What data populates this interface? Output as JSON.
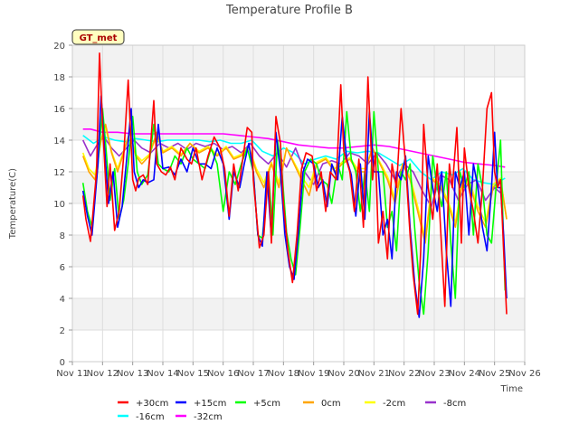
{
  "chart_data": {
    "type": "line",
    "title": "Temperature Profile B",
    "xlabel": "Time",
    "ylabel": "Temperature(C)",
    "badge": "GT_met",
    "ylim": [
      0,
      20
    ],
    "yticks": [
      0,
      2,
      4,
      6,
      8,
      10,
      12,
      14,
      16,
      18,
      20
    ],
    "xlim": [
      0,
      15
    ],
    "xticks": [
      {
        "x": 0,
        "label": "Nov 11"
      },
      {
        "x": 1,
        "label": "Nov 12"
      },
      {
        "x": 2,
        "label": "Nov 13"
      },
      {
        "x": 3,
        "label": "Nov 14"
      },
      {
        "x": 4,
        "label": "Nov 15"
      },
      {
        "x": 5,
        "label": "Nov 16"
      },
      {
        "x": 6,
        "label": "Nov 17"
      },
      {
        "x": 7,
        "label": "Nov 18"
      },
      {
        "x": 8,
        "label": "Nov 19"
      },
      {
        "x": 9,
        "label": "Nov 20"
      },
      {
        "x": 10,
        "label": "Nov 21"
      },
      {
        "x": 11,
        "label": "Nov 22"
      },
      {
        "x": 12,
        "label": "Nov 23"
      },
      {
        "x": 13,
        "label": "Nov 24"
      },
      {
        "x": 14,
        "label": "Nov 25"
      },
      {
        "x": 15,
        "label": "Nov 26"
      }
    ],
    "grid": true,
    "legend_position": "bottom",
    "series": [
      {
        "name": "+30cm",
        "color": "#ff0000",
        "x": [
          0.35,
          0.45,
          0.6,
          0.8,
          0.9,
          1.0,
          1.15,
          1.25,
          1.4,
          1.55,
          1.7,
          1.85,
          2.0,
          2.1,
          2.2,
          2.35,
          2.5,
          2.7,
          2.8,
          2.95,
          3.1,
          3.25,
          3.4,
          3.6,
          3.8,
          3.95,
          4.1,
          4.3,
          4.5,
          4.7,
          4.9,
          5.05,
          5.2,
          5.35,
          5.5,
          5.65,
          5.8,
          5.95,
          6.0,
          6.2,
          6.35,
          6.5,
          6.6,
          6.75,
          6.9,
          7.0,
          7.15,
          7.3,
          7.45,
          7.6,
          7.75,
          7.95,
          8.1,
          8.25,
          8.4,
          8.55,
          8.75,
          8.9,
          9.0,
          9.2,
          9.35,
          9.5,
          9.65,
          9.8,
          9.95,
          10.05,
          10.15,
          10.3,
          10.45,
          10.6,
          10.75,
          10.9,
          11.05,
          11.2,
          11.3,
          11.45,
          11.55,
          11.65,
          11.8,
          11.95,
          12.1,
          12.25,
          12.35,
          12.5,
          12.6,
          12.75,
          12.9,
          13.0,
          13.15,
          13.3,
          13.45,
          13.6,
          13.75,
          13.9,
          14.0,
          14.1,
          14.2,
          14.3,
          14.4
        ],
        "y": [
          10.5,
          9.0,
          7.6,
          12.0,
          19.5,
          15.0,
          9.8,
          12.5,
          8.3,
          9.5,
          13.0,
          17.8,
          11.5,
          10.8,
          11.6,
          11.8,
          11.2,
          16.5,
          12.5,
          12.0,
          11.8,
          12.3,
          11.5,
          13.5,
          12.8,
          12.5,
          13.5,
          11.5,
          13.0,
          14.2,
          13.5,
          12.2,
          9.2,
          12.5,
          10.8,
          12.8,
          14.8,
          14.5,
          11.5,
          7.2,
          8.0,
          12.0,
          7.5,
          15.5,
          13.8,
          10.0,
          7.0,
          5.0,
          8.0,
          12.2,
          13.2,
          13.0,
          10.8,
          12.0,
          9.5,
          12.0,
          11.5,
          17.5,
          13.3,
          12.0,
          9.5,
          12.8,
          8.5,
          18.0,
          11.5,
          13.2,
          7.5,
          9.5,
          6.5,
          12.5,
          11.0,
          16.0,
          12.5,
          8.0,
          5.5,
          3.0,
          7.0,
          15.0,
          11.0,
          9.0,
          12.5,
          7.0,
          3.5,
          12.5,
          11.0,
          14.8,
          7.5,
          13.5,
          11.0,
          9.5,
          7.5,
          11.0,
          16.0,
          17.0,
          12.0,
          11.0,
          11.5,
          7.0,
          3.0
        ]
      },
      {
        "name": "+15cm",
        "color": "#0000ff",
        "x": [
          0.35,
          0.5,
          0.65,
          0.85,
          0.95,
          1.05,
          1.2,
          1.35,
          1.5,
          1.65,
          1.8,
          1.95,
          2.05,
          2.2,
          2.35,
          2.5,
          2.7,
          2.85,
          3.0,
          3.2,
          3.4,
          3.6,
          3.8,
          4.0,
          4.2,
          4.4,
          4.6,
          4.8,
          5.0,
          5.2,
          5.35,
          5.55,
          5.7,
          5.85,
          6.0,
          6.15,
          6.3,
          6.45,
          6.6,
          6.75,
          6.9,
          7.05,
          7.2,
          7.35,
          7.5,
          7.65,
          7.8,
          8.0,
          8.15,
          8.3,
          8.45,
          8.6,
          8.8,
          8.95,
          9.1,
          9.25,
          9.4,
          9.55,
          9.7,
          9.85,
          10.0,
          10.15,
          10.3,
          10.45,
          10.6,
          10.75,
          10.9,
          11.05,
          11.2,
          11.35,
          11.5,
          11.65,
          11.8,
          11.95,
          12.1,
          12.25,
          12.4,
          12.55,
          12.7,
          12.85,
          13.0,
          13.15,
          13.3,
          13.45,
          13.6,
          13.75,
          13.9,
          14.0,
          14.1,
          14.2,
          14.3,
          14.4
        ],
        "y": [
          10.8,
          9.2,
          8.0,
          12.5,
          16.8,
          14.0,
          10.0,
          12.0,
          8.5,
          9.8,
          12.8,
          16.0,
          12.0,
          11.0,
          11.5,
          11.3,
          11.5,
          15.0,
          12.2,
          12.3,
          11.8,
          12.8,
          12.0,
          13.5,
          12.5,
          12.5,
          12.2,
          13.5,
          12.5,
          9.0,
          12.0,
          11.0,
          12.5,
          13.8,
          12.0,
          8.0,
          7.3,
          12.0,
          7.8,
          14.5,
          12.0,
          8.0,
          6.0,
          5.2,
          8.3,
          12.0,
          12.8,
          12.5,
          11.0,
          11.5,
          9.8,
          12.5,
          11.5,
          15.5,
          12.8,
          11.8,
          9.2,
          12.5,
          9.0,
          15.8,
          12.0,
          12.0,
          8.0,
          9.0,
          6.5,
          12.0,
          11.5,
          13.0,
          8.5,
          5.0,
          2.8,
          6.5,
          13.0,
          11.0,
          9.5,
          12.0,
          7.0,
          3.5,
          12.0,
          11.0,
          12.0,
          8.0,
          12.5,
          11.0,
          8.5,
          7.0,
          11.0,
          14.5,
          11.0,
          11.0,
          8.0,
          4.0
        ]
      },
      {
        "name": "+5cm",
        "color": "#00ff00",
        "x": [
          0.35,
          0.5,
          0.65,
          0.85,
          1.0,
          1.1,
          1.25,
          1.4,
          1.55,
          1.7,
          1.85,
          2.0,
          2.15,
          2.3,
          2.5,
          2.7,
          2.85,
          3.0,
          3.2,
          3.4,
          3.6,
          3.8,
          4.0,
          4.2,
          4.4,
          4.6,
          4.8,
          5.0,
          5.2,
          5.4,
          5.6,
          5.8,
          6.0,
          6.15,
          6.3,
          6.5,
          6.65,
          6.8,
          6.95,
          7.1,
          7.25,
          7.4,
          7.55,
          7.7,
          7.9,
          8.1,
          8.25,
          8.45,
          8.6,
          8.8,
          8.95,
          9.1,
          9.25,
          9.4,
          9.55,
          9.7,
          9.85,
          10.0,
          10.15,
          10.3,
          10.45,
          10.6,
          10.75,
          10.9,
          11.05,
          11.2,
          11.35,
          11.5,
          11.65,
          11.8,
          11.95,
          12.1,
          12.25,
          12.4,
          12.55,
          12.7,
          12.85,
          13.0,
          13.15,
          13.3,
          13.45,
          13.6,
          13.75,
          13.9,
          14.05,
          14.2,
          14.35
        ],
        "y": [
          11.3,
          9.5,
          8.5,
          12.5,
          16.0,
          13.8,
          10.2,
          12.2,
          9.0,
          10.2,
          12.5,
          15.5,
          12.0,
          11.2,
          11.8,
          15.0,
          12.5,
          12.2,
          12.0,
          13.0,
          12.5,
          13.5,
          12.8,
          12.5,
          12.2,
          13.5,
          12.5,
          9.5,
          12.0,
          11.2,
          12.5,
          13.5,
          12.0,
          8.0,
          7.8,
          12.0,
          8.0,
          14.0,
          12.0,
          8.2,
          6.5,
          5.5,
          8.5,
          12.0,
          12.8,
          12.5,
          11.5,
          11.2,
          10.0,
          12.5,
          11.5,
          15.8,
          12.8,
          12.0,
          9.5,
          12.0,
          9.5,
          15.8,
          12.0,
          12.0,
          8.5,
          9.5,
          7.0,
          12.0,
          11.5,
          12.5,
          8.5,
          5.0,
          3.0,
          7.0,
          13.0,
          11.0,
          9.8,
          12.0,
          7.5,
          4.0,
          12.0,
          11.0,
          12.0,
          8.0,
          12.5,
          11.0,
          8.0,
          7.5,
          11.0,
          14.0,
          4.5
        ]
      },
      {
        "name": "0cm",
        "color": "#ffa500",
        "x": [
          0.35,
          0.55,
          0.75,
          0.95,
          1.1,
          1.3,
          1.5,
          1.7,
          1.9,
          2.1,
          2.3,
          2.55,
          2.8,
          3.0,
          3.3,
          3.6,
          3.9,
          4.2,
          4.5,
          4.8,
          5.1,
          5.35,
          5.6,
          5.85,
          6.1,
          6.35,
          6.6,
          6.85,
          7.1,
          7.35,
          7.6,
          7.85,
          8.1,
          8.4,
          8.7,
          8.95,
          9.2,
          9.45,
          9.7,
          9.95,
          10.2,
          10.45,
          10.7,
          10.95,
          11.2,
          11.45,
          11.7,
          11.95,
          12.2,
          12.45,
          12.7,
          12.95,
          13.2,
          13.45,
          13.7,
          13.95,
          14.2,
          14.4
        ],
        "y": [
          13.0,
          12.0,
          11.5,
          14.0,
          15.0,
          13.2,
          12.0,
          13.2,
          14.5,
          13.0,
          12.5,
          13.0,
          14.5,
          13.2,
          13.5,
          13.0,
          13.8,
          13.2,
          13.5,
          13.0,
          13.5,
          12.8,
          13.0,
          13.6,
          12.0,
          11.0,
          12.5,
          11.0,
          13.5,
          12.5,
          11.5,
          10.5,
          12.5,
          12.8,
          12.0,
          12.5,
          12.8,
          12.0,
          12.0,
          13.5,
          12.5,
          11.5,
          10.0,
          12.5,
          11.5,
          9.5,
          7.5,
          11.5,
          11.0,
          10.0,
          8.5,
          11.5,
          11.0,
          9.5,
          8.5,
          11.0,
          11.5,
          9.0
        ]
      },
      {
        "name": "-2cm",
        "color": "#ffff00",
        "x": [
          0.35,
          0.55,
          0.75,
          0.95,
          1.1,
          1.3,
          1.5,
          1.7,
          1.9,
          2.1,
          2.3,
          2.55,
          2.8,
          3.0,
          3.3,
          3.6,
          3.9,
          4.2,
          4.5,
          4.8,
          5.1,
          5.35,
          5.6,
          5.85,
          6.1,
          6.35,
          6.6,
          6.85,
          7.1,
          7.35,
          7.6,
          7.85,
          8.1,
          8.4,
          8.7,
          8.95,
          9.2,
          9.45,
          9.7,
          9.95,
          10.2,
          10.45,
          10.7,
          10.95,
          11.2,
          11.45,
          11.7,
          11.95,
          12.2,
          12.45,
          12.7,
          12.95,
          13.2,
          13.45,
          13.7,
          13.95,
          14.2,
          14.4
        ],
        "y": [
          13.2,
          12.2,
          11.8,
          14.0,
          14.8,
          13.3,
          12.2,
          13.3,
          14.5,
          13.1,
          12.7,
          13.1,
          14.3,
          13.3,
          13.6,
          13.1,
          13.8,
          13.3,
          13.6,
          13.1,
          13.6,
          12.9,
          13.1,
          13.6,
          12.2,
          11.3,
          12.6,
          11.3,
          13.5,
          12.6,
          11.7,
          11.0,
          12.6,
          12.9,
          12.2,
          12.6,
          12.9,
          12.2,
          12.2,
          13.5,
          12.6,
          11.7,
          10.3,
          12.5,
          11.7,
          9.8,
          7.8,
          11.6,
          11.2,
          10.2,
          8.8,
          11.6,
          11.2,
          9.8,
          8.8,
          11.2,
          11.6,
          9.0
        ]
      },
      {
        "name": "-8cm",
        "color": "#9932cc",
        "x": [
          0.35,
          0.6,
          0.85,
          1.05,
          1.3,
          1.55,
          1.8,
          2.05,
          2.3,
          2.6,
          2.9,
          3.2,
          3.5,
          3.8,
          4.1,
          4.4,
          4.7,
          5.0,
          5.3,
          5.6,
          5.9,
          6.2,
          6.5,
          6.8,
          7.1,
          7.4,
          7.7,
          8.0,
          8.3,
          8.6,
          8.9,
          9.2,
          9.5,
          9.8,
          10.1,
          10.4,
          10.7,
          11.0,
          11.3,
          11.6,
          11.9,
          12.2,
          12.5,
          12.8,
          13.1,
          13.4,
          13.7,
          14.0,
          14.3
        ],
        "y": [
          14.0,
          13.0,
          13.8,
          14.2,
          13.5,
          13.0,
          13.5,
          14.0,
          13.5,
          13.2,
          13.8,
          13.5,
          13.8,
          13.4,
          13.8,
          13.6,
          13.8,
          13.4,
          13.6,
          13.2,
          13.8,
          13.0,
          12.5,
          13.2,
          12.3,
          13.5,
          12.0,
          11.2,
          12.5,
          12.7,
          12.5,
          13.2,
          13.0,
          12.5,
          13.2,
          12.5,
          11.5,
          12.5,
          12.0,
          10.8,
          9.8,
          11.8,
          11.5,
          10.2,
          11.2,
          11.5,
          10.2,
          11.0,
          10.5
        ]
      },
      {
        "name": "-16cm",
        "color": "#00ffff",
        "x": [
          0.35,
          0.7,
          1.05,
          1.4,
          1.75,
          2.1,
          2.45,
          2.8,
          3.15,
          3.5,
          3.85,
          4.2,
          4.55,
          4.9,
          5.25,
          5.6,
          5.95,
          6.3,
          6.65,
          7.0,
          7.35,
          7.7,
          8.05,
          8.4,
          8.75,
          9.1,
          9.45,
          9.8,
          10.15,
          10.5,
          10.85,
          11.2,
          11.55,
          11.9,
          12.25,
          12.6,
          12.95,
          13.3,
          13.65,
          14.0,
          14.35
        ],
        "y": [
          14.3,
          13.8,
          14.2,
          14.0,
          13.9,
          14.1,
          14.0,
          13.9,
          14.0,
          14.0,
          14.0,
          14.0,
          13.9,
          14.0,
          13.8,
          13.8,
          14.0,
          13.3,
          13.0,
          13.5,
          13.2,
          12.5,
          12.8,
          13.0,
          12.8,
          13.3,
          13.2,
          13.3,
          13.2,
          12.8,
          12.4,
          12.8,
          12.0,
          11.5,
          12.0,
          11.8,
          12.2,
          11.5,
          11.3,
          11.2,
          11.6
        ]
      },
      {
        "name": "-32cm",
        "color": "#ff00ff",
        "x": [
          0.35,
          0.6,
          1.0,
          1.5,
          2.0,
          2.5,
          3.0,
          3.5,
          4.0,
          4.5,
          5.0,
          5.5,
          6.0,
          6.5,
          7.0,
          7.5,
          8.0,
          8.5,
          9.0,
          9.5,
          10.0,
          10.5,
          11.0,
          11.5,
          12.0,
          12.5,
          13.0,
          13.5,
          14.0,
          14.35
        ],
        "y": [
          14.7,
          14.7,
          14.5,
          14.5,
          14.4,
          14.4,
          14.4,
          14.4,
          14.4,
          14.4,
          14.4,
          14.3,
          14.2,
          14.1,
          13.9,
          13.7,
          13.6,
          13.5,
          13.5,
          13.6,
          13.7,
          13.6,
          13.4,
          13.2,
          13.0,
          12.8,
          12.6,
          12.5,
          12.4,
          12.3
        ]
      }
    ]
  }
}
